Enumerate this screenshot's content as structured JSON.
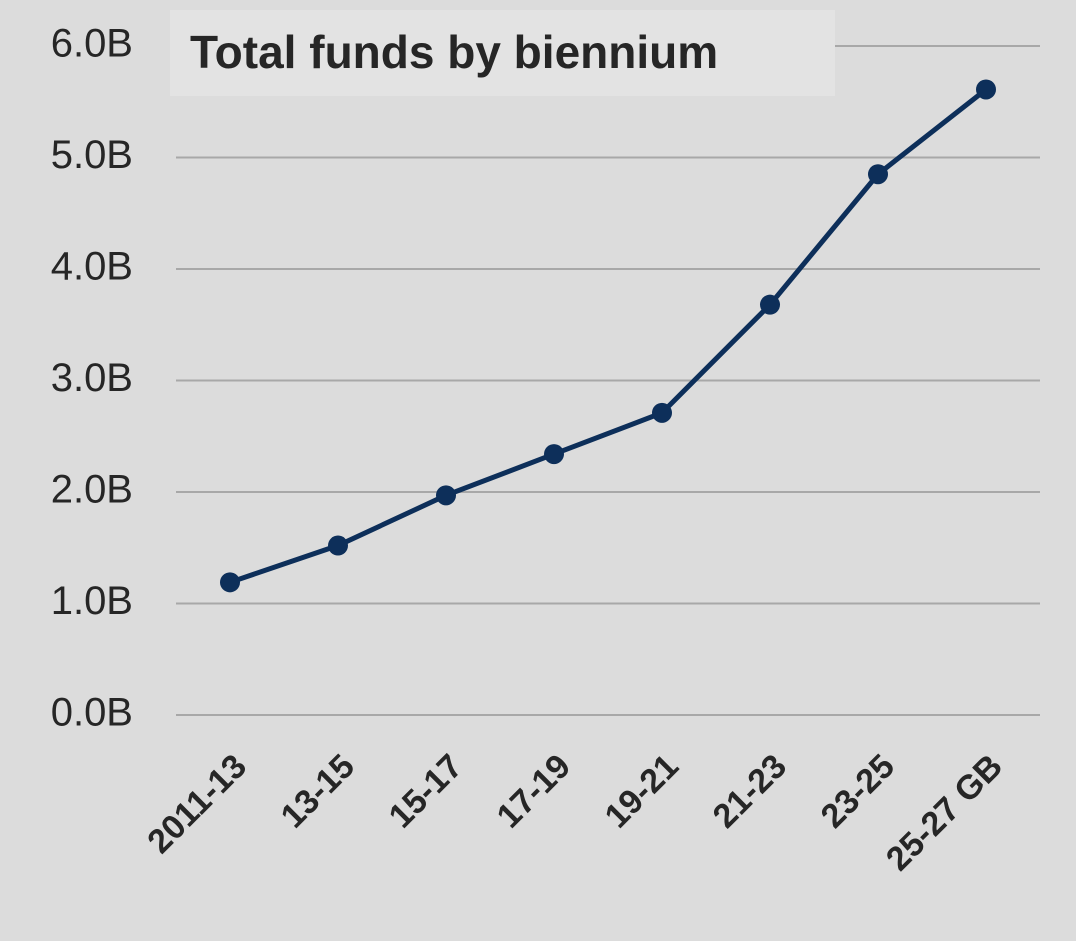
{
  "chart_data": {
    "type": "line",
    "title": "Total funds by biennium",
    "categories": [
      "2011-13",
      "13-15",
      "15-17",
      "17-19",
      "19-21",
      "21-23",
      "23-25",
      "25-27 GB"
    ],
    "series": [
      {
        "name": "Total funds",
        "color": "#0d2f5a",
        "values": [
          1.19,
          1.52,
          1.97,
          2.34,
          2.71,
          3.68,
          4.85,
          5.61
        ]
      }
    ],
    "ylim": [
      0,
      6
    ],
    "yticks": [
      {
        "value": 0,
        "label": "0.0B"
      },
      {
        "value": 1,
        "label": "1.0B"
      },
      {
        "value": 2,
        "label": "2.0B"
      },
      {
        "value": 3,
        "label": "3.0B"
      },
      {
        "value": 4,
        "label": "4.0B"
      },
      {
        "value": 5,
        "label": "5.0B"
      },
      {
        "value": 6,
        "label": "6.0B"
      }
    ],
    "grid": true
  }
}
